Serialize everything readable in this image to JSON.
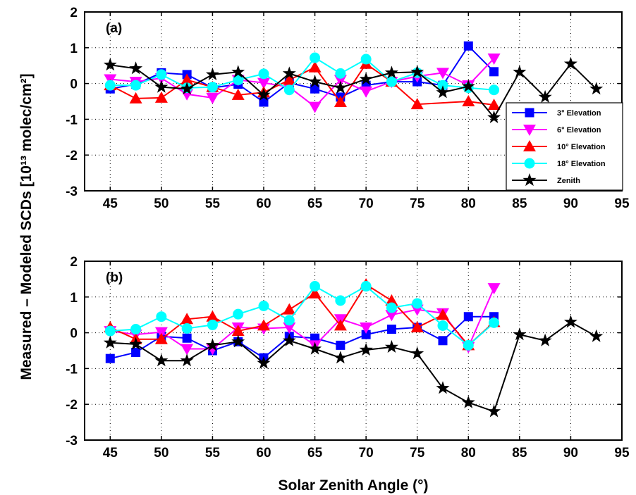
{
  "colors": {
    "blue": "#0000ff",
    "magenta": "#ff00ff",
    "red": "#ff0000",
    "cyan": "#00ffff",
    "black": "#000000"
  },
  "chart_data": {
    "type": "line",
    "xlabel": "Solar Zenith Angle (°)",
    "ylabel": "Measured – Modeled SCDs [10¹³ molec/cm²]",
    "xlim": [
      42.5,
      95
    ],
    "ylim": [
      -3,
      2
    ],
    "xticks": [
      45,
      50,
      55,
      60,
      65,
      70,
      75,
      80,
      85,
      90,
      95
    ],
    "yticks": [
      -3,
      -2,
      -1,
      0,
      1,
      2
    ],
    "grid": true,
    "legend": {
      "placement": "bottom-right of panel (a)",
      "entries": [
        "3° Elevation",
        "6° Elevation",
        "10° Elevation",
        "18° Elevation",
        "Zenith"
      ]
    },
    "panels": [
      {
        "label": "(a)",
        "series": [
          {
            "name": "3° Elevation",
            "marker": "square",
            "color": "blue",
            "x": [
              45,
              47.5,
              50,
              52.5,
              55,
              57.5,
              60,
              62.5,
              65,
              67.5,
              70,
              72.5,
              75,
              77.5,
              80,
              82.5
            ],
            "y": [
              -0.15,
              -0.02,
              0.3,
              0.25,
              -0.12,
              -0.02,
              -0.52,
              0.02,
              -0.15,
              -0.38,
              -0.05,
              0.05,
              0.05,
              -0.05,
              1.05,
              0.33
            ]
          },
          {
            "name": "6° Elevation",
            "marker": "triangle-down",
            "color": "magenta",
            "x": [
              45,
              47.5,
              50,
              52.5,
              55,
              57.5,
              60,
              62.5,
              65,
              67.5,
              70,
              72.5,
              75,
              77.5,
              80,
              82.5
            ],
            "y": [
              0.12,
              0.05,
              0.15,
              -0.3,
              -0.4,
              0.1,
              0.02,
              -0.1,
              -0.65,
              0.1,
              -0.22,
              0.05,
              0.2,
              0.3,
              -0.05,
              0.7
            ]
          },
          {
            "name": "10° Elevation",
            "marker": "triangle-up",
            "color": "red",
            "x": [
              45,
              47.5,
              50,
              52.5,
              55,
              57.5,
              60,
              62.5,
              65,
              67.5,
              70,
              72.5,
              75,
              80,
              82.5
            ],
            "y": [
              -0.05,
              -0.42,
              -0.4,
              0.1,
              -0.1,
              -0.32,
              -0.25,
              0.1,
              0.45,
              -0.52,
              0.55,
              0.05,
              -0.58,
              -0.5,
              -0.6
            ]
          },
          {
            "name": "18° Elevation",
            "marker": "circle",
            "color": "cyan",
            "x": [
              45,
              47.5,
              50,
              52.5,
              55,
              57.5,
              60,
              62.5,
              65,
              67.5,
              70,
              72.5,
              75,
              77.5,
              80,
              82.5
            ],
            "y": [
              -0.05,
              -0.05,
              0.25,
              -0.12,
              -0.1,
              0.1,
              0.27,
              -0.18,
              0.72,
              0.28,
              0.68,
              0.05,
              0.3,
              -0.05,
              -0.12,
              -0.18
            ]
          },
          {
            "name": "Zenith",
            "marker": "star",
            "color": "black",
            "x": [
              45,
              47.5,
              50,
              52.5,
              55,
              57.5,
              60,
              62.5,
              65,
              67.5,
              70,
              72.5,
              75,
              77.5,
              80,
              82.5,
              85,
              87.5,
              90,
              92.5
            ],
            "y": [
              0.52,
              0.42,
              -0.1,
              -0.15,
              0.25,
              0.32,
              -0.32,
              0.28,
              0.05,
              -0.12,
              0.12,
              0.3,
              0.32,
              -0.25,
              -0.08,
              -0.95,
              0.32,
              -0.38,
              0.55,
              -0.15
            ]
          }
        ]
      },
      {
        "label": "(b)",
        "series": [
          {
            "name": "3° Elevation",
            "marker": "square",
            "color": "blue",
            "x": [
              45,
              47.5,
              50,
              52.5,
              55,
              57.5,
              60,
              62.5,
              65,
              67.5,
              70,
              72.5,
              75,
              77.5,
              80,
              82.5
            ],
            "y": [
              -0.72,
              -0.55,
              -0.1,
              -0.15,
              -0.5,
              -0.25,
              -0.7,
              -0.1,
              -0.15,
              -0.35,
              -0.05,
              0.1,
              0.15,
              -0.22,
              0.45,
              0.45
            ]
          },
          {
            "name": "6° Elevation",
            "marker": "triangle-down",
            "color": "magenta",
            "x": [
              45,
              47.5,
              50,
              52.5,
              55,
              57.5,
              60,
              62.5,
              65,
              67.5,
              70,
              72.5,
              75,
              77.5,
              80,
              82.5
            ],
            "y": [
              0.05,
              -0.05,
              0.02,
              -0.45,
              -0.45,
              0.15,
              0.12,
              0.15,
              -0.35,
              0.38,
              0.15,
              0.5,
              0.65,
              0.55,
              -0.4,
              1.25
            ]
          },
          {
            "name": "10° Elevation",
            "marker": "triangle-up",
            "color": "red",
            "x": [
              45,
              47.5,
              50,
              52.5,
              55,
              57.5,
              60,
              62.5,
              65,
              67.5,
              70,
              72.5,
              75,
              77.5,
              80,
              82.5
            ],
            "y": [
              0.15,
              -0.18,
              -0.18,
              0.38,
              0.45,
              0.05,
              0.2,
              0.65,
              1.1,
              0.2,
              1.35,
              0.9,
              0.15,
              0.5,
              -0.35,
              0.3
            ]
          },
          {
            "name": "18° Elevation",
            "marker": "circle",
            "color": "cyan",
            "x": [
              45,
              47.5,
              50,
              52.5,
              55,
              57.5,
              60,
              62.5,
              65,
              67.5,
              70,
              72.5,
              75,
              77.5,
              80,
              82.5
            ],
            "y": [
              0.05,
              0.1,
              0.45,
              0.12,
              0.22,
              0.52,
              0.75,
              0.35,
              1.3,
              0.9,
              1.3,
              0.7,
              0.82,
              0.2,
              -0.35,
              0.28
            ]
          },
          {
            "name": "Zenith",
            "marker": "star",
            "color": "black",
            "x": [
              45,
              47.5,
              50,
              52.5,
              55,
              57.5,
              60,
              62.5,
              65,
              67.5,
              70,
              72.5,
              75,
              77.5,
              80,
              82.5,
              85,
              87.5,
              90,
              92.5
            ],
            "y": [
              -0.28,
              -0.32,
              -0.78,
              -0.78,
              -0.35,
              -0.25,
              -0.85,
              -0.22,
              -0.45,
              -0.7,
              -0.48,
              -0.4,
              -0.58,
              -1.55,
              -1.95,
              -2.2,
              -0.05,
              -0.22,
              0.3,
              -0.1
            ]
          }
        ]
      }
    ]
  }
}
